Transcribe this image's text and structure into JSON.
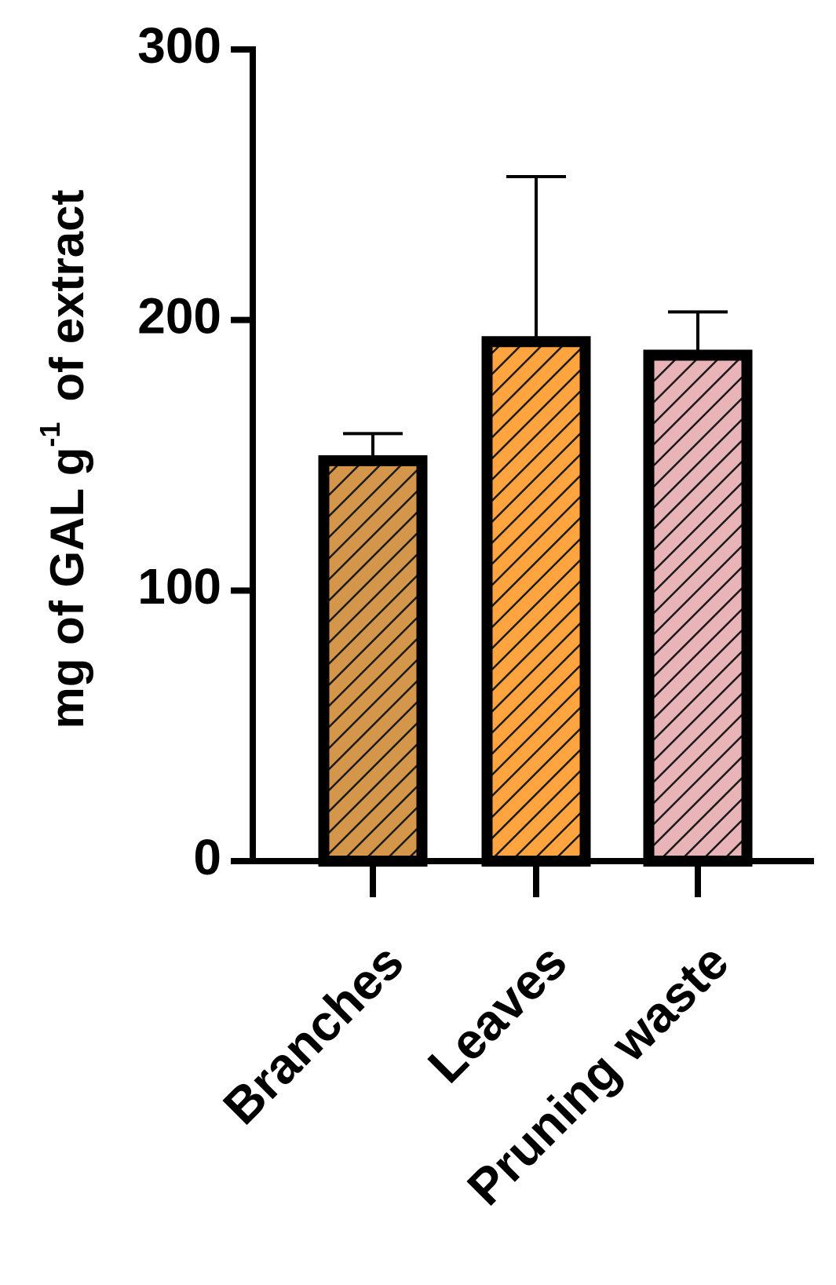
{
  "chart_data": {
    "type": "bar",
    "categories": [
      "Branches",
      "Leaves",
      "Pruning waste"
    ],
    "values": [
      148,
      192,
      187
    ],
    "errors": [
      10,
      61,
      16
    ],
    "colors": [
      "#d4964a",
      "#ffa43f",
      "#e8b4b8"
    ],
    "pattern": "diagonal-hatch",
    "ylabel": {
      "prefix": "mg of GAL g",
      "superscript": "-1",
      "suffix": "of extract"
    },
    "ylim": [
      0,
      300
    ],
    "yticks": [
      "0",
      "100",
      "200",
      "300"
    ],
    "grid": false
  }
}
